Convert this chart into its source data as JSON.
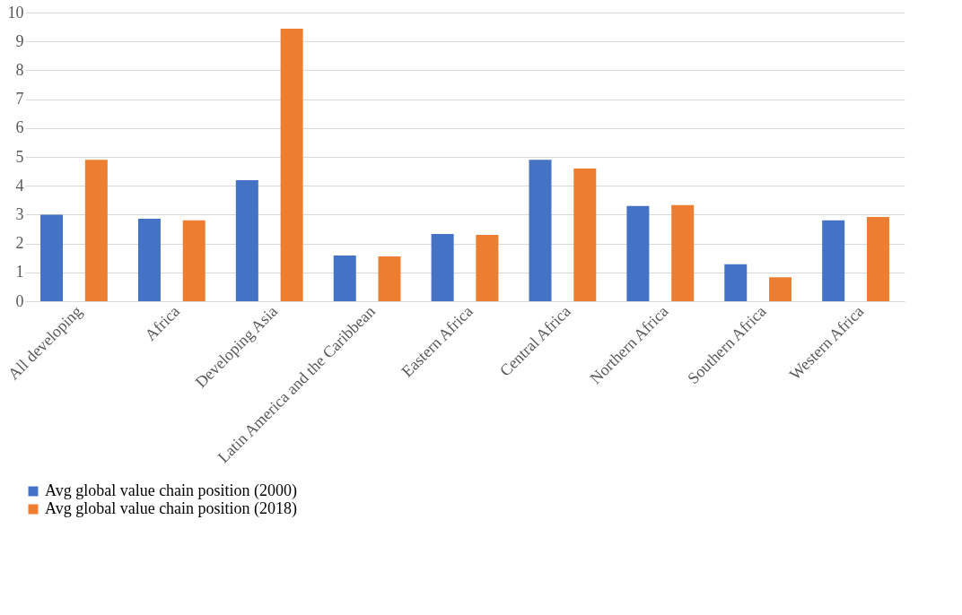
{
  "chart_data": {
    "type": "bar",
    "categories": [
      "All developing",
      "Africa",
      "Developing Asia",
      "Latin America and the Caribbean",
      "Eastern Africa",
      "Central Africa",
      "Northern Africa",
      "Southern Africa",
      "Western Africa"
    ],
    "series": [
      {
        "name": "Avg global value chain position (2000)",
        "color": "#4472c4",
        "values": [
          3.0,
          2.86,
          4.19,
          1.58,
          2.33,
          4.9,
          3.3,
          1.28,
          2.8
        ]
      },
      {
        "name": "Avg global value chain position (2018)",
        "color": "#ed7d31",
        "values": [
          4.9,
          2.8,
          9.44,
          1.55,
          2.3,
          4.6,
          3.33,
          0.83,
          2.92
        ]
      }
    ],
    "ylim": [
      0,
      10
    ],
    "yticks": [
      0,
      1,
      2,
      3,
      4,
      5,
      6,
      7,
      8,
      9,
      10
    ],
    "grid": "y",
    "legend": "bottom"
  }
}
